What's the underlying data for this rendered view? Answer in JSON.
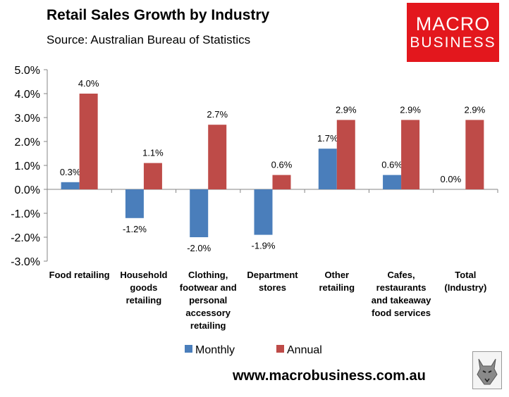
{
  "header": {
    "title": "Retail Sales Growth by Industry",
    "subtitle": "Source: Australian Bureau of Statistics"
  },
  "logo": {
    "line1": "MACRO",
    "line2": "BUSINESS"
  },
  "footer": {
    "url": "www.macrobusiness.com.au"
  },
  "colors": {
    "monthly": "#4a7ebb",
    "annual": "#be4b48",
    "logo": "#e3171d"
  },
  "chart_data": {
    "type": "bar",
    "title": "Retail Sales Growth by Industry",
    "xlabel": "",
    "ylabel": "",
    "ylim": [
      -3.0,
      5.0
    ],
    "yticks": [
      5.0,
      4.0,
      3.0,
      2.0,
      1.0,
      0.0,
      -1.0,
      -2.0,
      -3.0
    ],
    "ytick_labels": [
      "5.0%",
      "4.0%",
      "3.0%",
      "2.0%",
      "1.0%",
      "0.0%",
      "-1.0%",
      "-2.0%",
      "-3.0%"
    ],
    "grid": false,
    "legend_position": "bottom",
    "categories": [
      [
        "Food retailing"
      ],
      [
        "Household",
        "goods",
        "retailing"
      ],
      [
        "Clothing,",
        "footwear and",
        "personal",
        "accessory",
        "retailing"
      ],
      [
        "Department",
        "stores"
      ],
      [
        "Other",
        "retailing"
      ],
      [
        "Cafes,",
        "restaurants",
        "and takeaway",
        "food services"
      ],
      [
        "Total",
        "(Industry)"
      ]
    ],
    "series": [
      {
        "name": "Monthly",
        "color": "#4a7ebb",
        "values": [
          0.3,
          -1.2,
          -2.0,
          -1.9,
          1.7,
          0.6,
          0.0
        ],
        "labels": [
          "0.3%",
          "-1.2%",
          "-2.0%",
          "-1.9%",
          "1.7%",
          "0.6%",
          "0.0%"
        ]
      },
      {
        "name": "Annual",
        "color": "#be4b48",
        "values": [
          4.0,
          1.1,
          2.7,
          0.6,
          2.9,
          2.9,
          2.9
        ],
        "labels": [
          "4.0%",
          "1.1%",
          "2.7%",
          "0.6%",
          "2.9%",
          "2.9%",
          "2.9%"
        ]
      }
    ]
  }
}
